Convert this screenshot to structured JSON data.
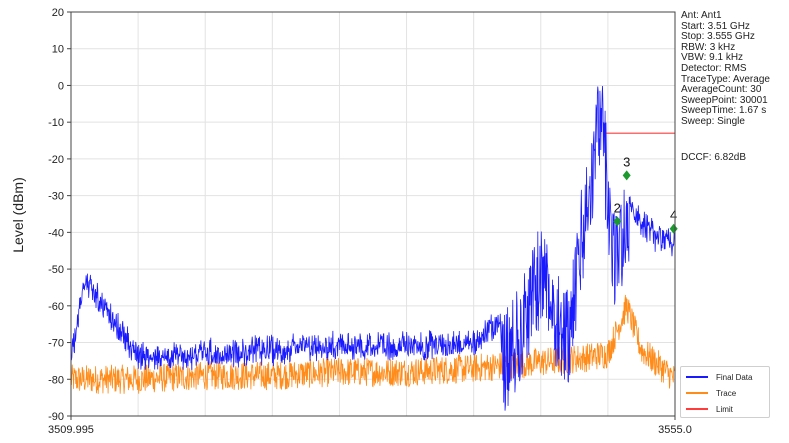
{
  "chart_data": {
    "type": "line",
    "ylabel": "Level (dBm)",
    "xlabel": "",
    "x_tick_labels": [
      "3509.995",
      "3555.0"
    ],
    "xlim": [
      3509.995,
      3555.0
    ],
    "ylim": [
      -90,
      20
    ],
    "y_ticks": [
      20,
      10,
      0,
      -10,
      -20,
      -30,
      -40,
      -50,
      -60,
      -70,
      -80,
      -90
    ],
    "grid": true,
    "legend_position": "bottom-right",
    "series": [
      {
        "name": "Final Data",
        "color": "#1a1aff",
        "x": [
          3509.995,
          3511.0,
          3515.0,
          3520.0,
          3525.0,
          3530.0,
          3535.0,
          3540.0,
          3543.0,
          3545.0,
          3547.0,
          3548.5,
          3549.5,
          3550.4,
          3551.4,
          3552.0,
          3553.5,
          3555.0
        ],
        "y": [
          -72,
          -50,
          -71,
          -70,
          -69,
          -68,
          -68,
          -67,
          -58,
          -38,
          -55,
          -18,
          8,
          -35,
          -25,
          -32,
          -38,
          -40
        ]
      },
      {
        "name": "Trace",
        "color": "#ff8c1a",
        "x": [
          3509.995,
          3515.0,
          3520.0,
          3525.0,
          3530.0,
          3535.0,
          3540.0,
          3543.0,
          3546.0,
          3548.5,
          3550.0,
          3551.4,
          3552.5,
          3555.0
        ],
        "y": [
          -80,
          -80,
          -79,
          -79,
          -78,
          -78,
          -77,
          -76,
          -75,
          -74,
          -73,
          -60,
          -72,
          -80
        ]
      },
      {
        "name": "Limit",
        "color": "#ff3b3b",
        "x": [
          3549.9,
          3555.0
        ],
        "y": [
          -13,
          -13
        ]
      }
    ],
    "markers": [
      {
        "label": "2",
        "x": 3550.7,
        "y": -37
      },
      {
        "label": "3",
        "x": 3551.4,
        "y": -24.5
      },
      {
        "label": "4",
        "x": 3554.9,
        "y": -39
      }
    ],
    "info_lines": [
      "Ant: Ant1",
      "Start: 3.51 GHz",
      "Stop: 3.555 GHz",
      "RBW: 3 kHz",
      "VBW: 9.1 kHz",
      "Detector: RMS",
      "TraceType: Average",
      "AverageCount: 30",
      "SweepPoint: 30001",
      "SweepTime: 1.67 s",
      "Sweep: Single"
    ],
    "dccf": "DCCF: 6.82dB"
  }
}
